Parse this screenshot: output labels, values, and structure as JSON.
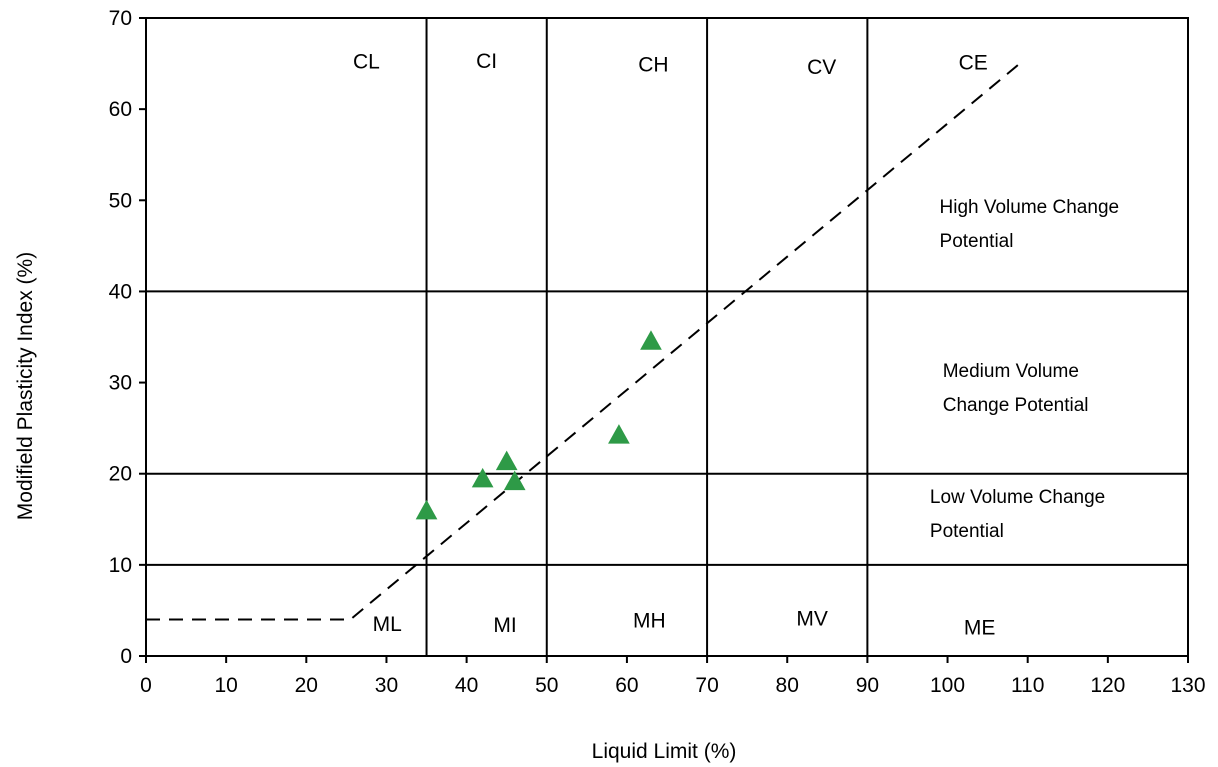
{
  "chart_data": {
    "type": "scatter",
    "title": "",
    "xlabel": "Liquid Limit (%)",
    "ylabel": "Modifield Plasticity Index (%)",
    "xlim": [
      0,
      130
    ],
    "ylim": [
      0,
      70
    ],
    "x_ticks": [
      0,
      10,
      20,
      30,
      40,
      50,
      60,
      70,
      80,
      90,
      100,
      110,
      120,
      130
    ],
    "y_ticks": [
      0,
      10,
      20,
      30,
      40,
      50,
      60,
      70
    ],
    "grid": false,
    "boundaries": {
      "vertical_x": [
        35,
        50,
        70,
        90
      ],
      "horizontal_y": [
        10,
        20,
        40
      ]
    },
    "a_line": {
      "style": "dashed",
      "points": [
        [
          0,
          4
        ],
        [
          25.5,
          4
        ],
        [
          109,
          65
        ]
      ]
    },
    "series": [
      {
        "marker": "triangle",
        "color": "#2e9a47",
        "points": [
          {
            "x": 35,
            "y": 15.8
          },
          {
            "x": 42,
            "y": 19.3
          },
          {
            "x": 45,
            "y": 21.2
          },
          {
            "x": 46,
            "y": 19.0
          },
          {
            "x": 59,
            "y": 24.1
          },
          {
            "x": 63,
            "y": 34.4
          }
        ]
      }
    ],
    "zone_labels": [
      {
        "text": "CL",
        "x": 27.5,
        "y": 65.2
      },
      {
        "text": "CI",
        "x": 42.5,
        "y": 65.3
      },
      {
        "text": "CH",
        "x": 63.3,
        "y": 64.9
      },
      {
        "text": "CV",
        "x": 84.3,
        "y": 64.6
      },
      {
        "text": "CE",
        "x": 103.2,
        "y": 65.1
      },
      {
        "text": "ML",
        "x": 30.1,
        "y": 3.5
      },
      {
        "text": "MI",
        "x": 44.8,
        "y": 3.4
      },
      {
        "text": "MH",
        "x": 62.8,
        "y": 3.9
      },
      {
        "text": "MV",
        "x": 83.1,
        "y": 4.1
      },
      {
        "text": "ME",
        "x": 104.0,
        "y": 3.1
      }
    ],
    "region_labels": [
      {
        "lines": [
          "High Volume Change",
          "Potential"
        ],
        "x": 99,
        "y": 48.6
      },
      {
        "lines": [
          "Medium Volume",
          "Change Potential"
        ],
        "x": 99.4,
        "y": 30.6
      },
      {
        "lines": [
          "Low Volume Change",
          "Potential"
        ],
        "x": 97.8,
        "y": 16.8
      }
    ],
    "colors": {
      "marker": "#2e9a47",
      "lines": "#000000",
      "background": "#ffffff"
    }
  }
}
